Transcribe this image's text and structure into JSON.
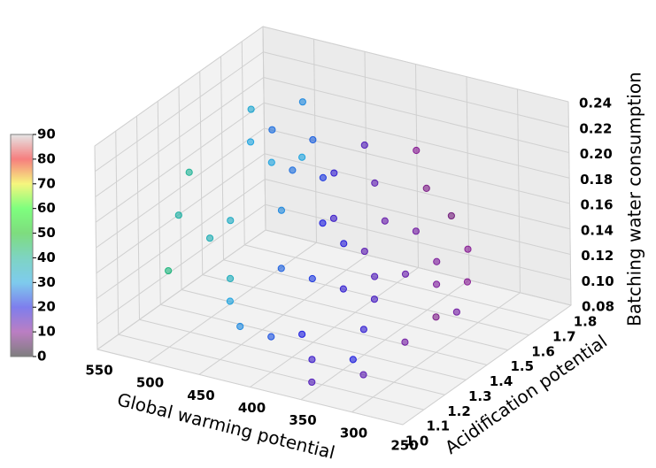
{
  "chart_data": {
    "type": "scatter3d",
    "xlabel": "Global warming potential",
    "ylabel": "Acidification potential",
    "zlabel": "Batching water consumption",
    "xlim": [
      250,
      550
    ],
    "xticks": [
      250,
      300,
      350,
      400,
      450,
      500,
      550
    ],
    "ylim": [
      1.0,
      1.8
    ],
    "yticks": [
      {
        "value": 1.0,
        "label": "1.0"
      },
      1.1,
      1.2,
      1.3,
      1.4,
      1.5,
      1.6,
      1.7,
      1.8
    ],
    "zlim": [
      0.08,
      0.24
    ],
    "zticks": [
      0.08,
      {
        "value": 0.1,
        "label": "0.10"
      },
      0.12,
      0.14,
      0.16,
      0.18,
      {
        "value": 0.2,
        "label": "0.20"
      },
      0.22,
      0.24
    ],
    "clim": [
      0,
      90
    ],
    "cticks": [
      0,
      10,
      20,
      30,
      40,
      50,
      60,
      70,
      80,
      90
    ],
    "colormap": [
      "#000000",
      "#7a0088",
      "#0000dd",
      "#0099dd",
      "#00aa88",
      "#00bb00",
      "#00ff00",
      "#eeee00",
      "#ee0000",
      "#cccccc"
    ],
    "grid": true,
    "x": [
      500,
      480,
      470,
      520,
      510,
      490,
      500,
      460,
      470,
      450,
      440,
      430,
      420,
      410,
      400,
      390,
      380,
      370,
      360,
      350,
      340,
      330,
      420,
      400,
      380,
      360,
      350,
      340,
      330,
      320,
      310,
      300,
      450,
      430,
      410,
      390,
      370,
      360,
      480,
      460,
      440,
      420,
      400,
      390,
      370,
      350,
      330,
      310,
      440,
      490
    ],
    "y": [
      1.5,
      1.4,
      1.6,
      1.3,
      1.2,
      1.25,
      1.1,
      1.2,
      1.45,
      1.55,
      1.35,
      1.5,
      1.65,
      1.4,
      1.6,
      1.75,
      1.55,
      1.7,
      1.6,
      1.72,
      1.6,
      1.7,
      1.25,
      1.3,
      1.35,
      1.4,
      1.3,
      1.2,
      1.2,
      1.35,
      1.45,
      1.5,
      1.15,
      1.1,
      1.15,
      1.2,
      1.15,
      1.1,
      1.3,
      1.5,
      1.6,
      1.5,
      1.45,
      1.5,
      1.45,
      1.5,
      1.55,
      1.6,
      1.45,
      1.55
    ],
    "z": [
      0.22,
      0.21,
      0.22,
      0.19,
      0.17,
      0.15,
      0.14,
      0.13,
      0.19,
      0.2,
      0.17,
      0.18,
      0.19,
      0.16,
      0.17,
      0.18,
      0.15,
      0.16,
      0.14,
      0.14,
      0.12,
      0.12,
      0.14,
      0.13,
      0.12,
      0.11,
      0.1,
      0.09,
      0.08,
      0.09,
      0.1,
      0.1,
      0.12,
      0.11,
      0.1,
      0.1,
      0.09,
      0.08,
      0.16,
      0.18,
      0.17,
      0.15,
      0.14,
      0.13,
      0.12,
      0.12,
      0.11,
      0.11,
      0.2,
      0.2
    ],
    "color_values": [
      32,
      30,
      28,
      40,
      38,
      36,
      42,
      35,
      30,
      25,
      28,
      22,
      15,
      20,
      14,
      10,
      13,
      9,
      12,
      8,
      11,
      10,
      25,
      22,
      18,
      16,
      18,
      20,
      14,
      12,
      9,
      12,
      30,
      28,
      24,
      20,
      17,
      15,
      34,
      26,
      18,
      17,
      19,
      14,
      15,
      13,
      11,
      10,
      30,
      26
    ]
  }
}
